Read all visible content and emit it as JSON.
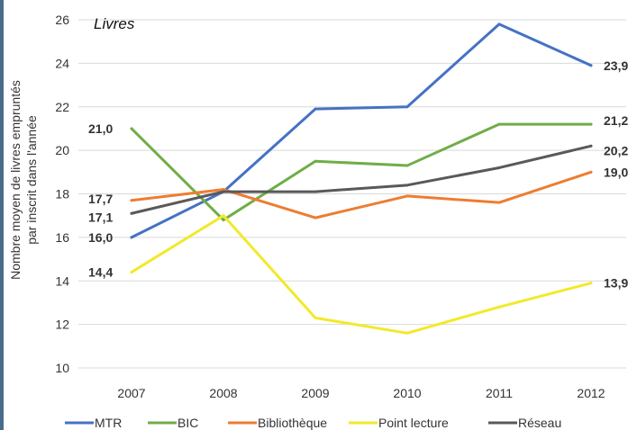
{
  "chart_data": {
    "type": "line",
    "title": "Livres",
    "xlabel": "",
    "ylabel": "Nombre moyen de livres empruntés par inscrit dans l'année",
    "ylabel_lines": [
      "Nombre moyen de livres empruntés",
      "par inscrit dans l'année"
    ],
    "categories": [
      "2007",
      "2008",
      "2009",
      "2010",
      "2011",
      "2012"
    ],
    "ylim": [
      10,
      26
    ],
    "yticks": [
      10,
      12,
      14,
      16,
      18,
      20,
      22,
      24,
      26
    ],
    "grid": true,
    "legend_position": "bottom",
    "series": [
      {
        "name": "MTR",
        "color": "#4472C4",
        "values": [
          16.0,
          18.1,
          21.9,
          22.0,
          25.8,
          23.9
        ]
      },
      {
        "name": "BIC",
        "color": "#70AD47",
        "values": [
          21.0,
          16.8,
          19.5,
          19.3,
          21.2,
          21.2
        ]
      },
      {
        "name": "Bibliothèque",
        "color": "#ED7D31",
        "values": [
          17.7,
          18.2,
          16.9,
          17.9,
          17.6,
          19.0
        ]
      },
      {
        "name": "Point lecture",
        "color": "#F2E92A",
        "values": [
          14.4,
          17.0,
          12.3,
          11.6,
          12.8,
          13.9
        ]
      },
      {
        "name": "Réseau",
        "color": "#595959",
        "values": [
          17.1,
          18.1,
          18.1,
          18.4,
          19.2,
          20.2
        ]
      }
    ],
    "data_labels": {
      "start": [
        {
          "text": "21,0",
          "value": 21.0
        },
        {
          "text": "17,7",
          "value": 17.7
        },
        {
          "text": "17,1",
          "value": 17.1
        },
        {
          "text": "16,0",
          "value": 16.0
        },
        {
          "text": "14,4",
          "value": 14.4
        }
      ],
      "end": [
        {
          "text": "23,9",
          "value": 23.9
        },
        {
          "text": "21,2",
          "value": 21.2
        },
        {
          "text": "20,2",
          "value": 20.2
        },
        {
          "text": "19,0",
          "value": 19.0
        },
        {
          "text": "13,9",
          "value": 13.9
        }
      ]
    }
  }
}
